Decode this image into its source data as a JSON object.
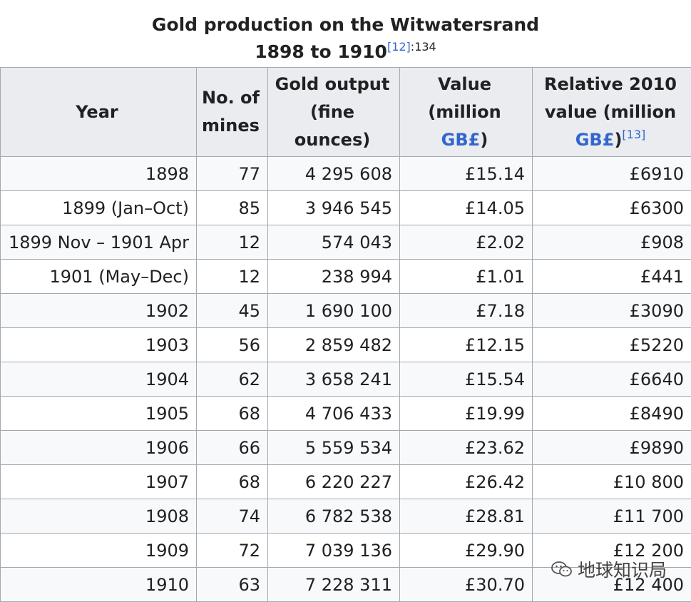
{
  "caption": {
    "line1": "Gold production on the Witwatersrand",
    "line2": "1898 to 1910",
    "ref": "[12]",
    "page": ":134"
  },
  "headers": {
    "year": "Year",
    "mines": "No. of mines",
    "output": "Gold output (fine ounces)",
    "value_pre": "Value (million ",
    "value_link": "GB£",
    "value_post": ")",
    "rel_pre": "Relative 2010 value (million ",
    "rel_link": "GB£",
    "rel_post": ")",
    "rel_ref": "[13]"
  },
  "rows": [
    {
      "year": "1898",
      "mines": "77",
      "output": "4 295 608",
      "value": "£15.14",
      "relative": "£6910"
    },
    {
      "year": "1899 (Jan–Oct)",
      "mines": "85",
      "output": "3 946 545",
      "value": "£14.05",
      "relative": "£6300"
    },
    {
      "year": "1899 Nov – 1901 Apr",
      "mines": "12",
      "output": "574 043",
      "value": "£2.02",
      "relative": "£908"
    },
    {
      "year": "1901 (May–Dec)",
      "mines": "12",
      "output": "238 994",
      "value": "£1.01",
      "relative": "£441"
    },
    {
      "year": "1902",
      "mines": "45",
      "output": "1 690 100",
      "value": "£7.18",
      "relative": "£3090"
    },
    {
      "year": "1903",
      "mines": "56",
      "output": "2 859 482",
      "value": "£12.15",
      "relative": "£5220"
    },
    {
      "year": "1904",
      "mines": "62",
      "output": "3 658 241",
      "value": "£15.54",
      "relative": "£6640"
    },
    {
      "year": "1905",
      "mines": "68",
      "output": "4 706 433",
      "value": "£19.99",
      "relative": "£8490"
    },
    {
      "year": "1906",
      "mines": "66",
      "output": "5 559 534",
      "value": "£23.62",
      "relative": "£9890"
    },
    {
      "year": "1907",
      "mines": "68",
      "output": "6 220 227",
      "value": "£26.42",
      "relative": "£10 800"
    },
    {
      "year": "1908",
      "mines": "74",
      "output": "6 782 538",
      "value": "£28.81",
      "relative": "£11 700"
    },
    {
      "year": "1909",
      "mines": "72",
      "output": "7 039 136",
      "value": "£29.90",
      "relative": "£12 200"
    },
    {
      "year": "1910",
      "mines": "63",
      "output": "7 228 311",
      "value": "£30.70",
      "relative": "£12 400"
    }
  ],
  "watermark": {
    "text": "地球知识局",
    "icon": "wechat-icon"
  }
}
